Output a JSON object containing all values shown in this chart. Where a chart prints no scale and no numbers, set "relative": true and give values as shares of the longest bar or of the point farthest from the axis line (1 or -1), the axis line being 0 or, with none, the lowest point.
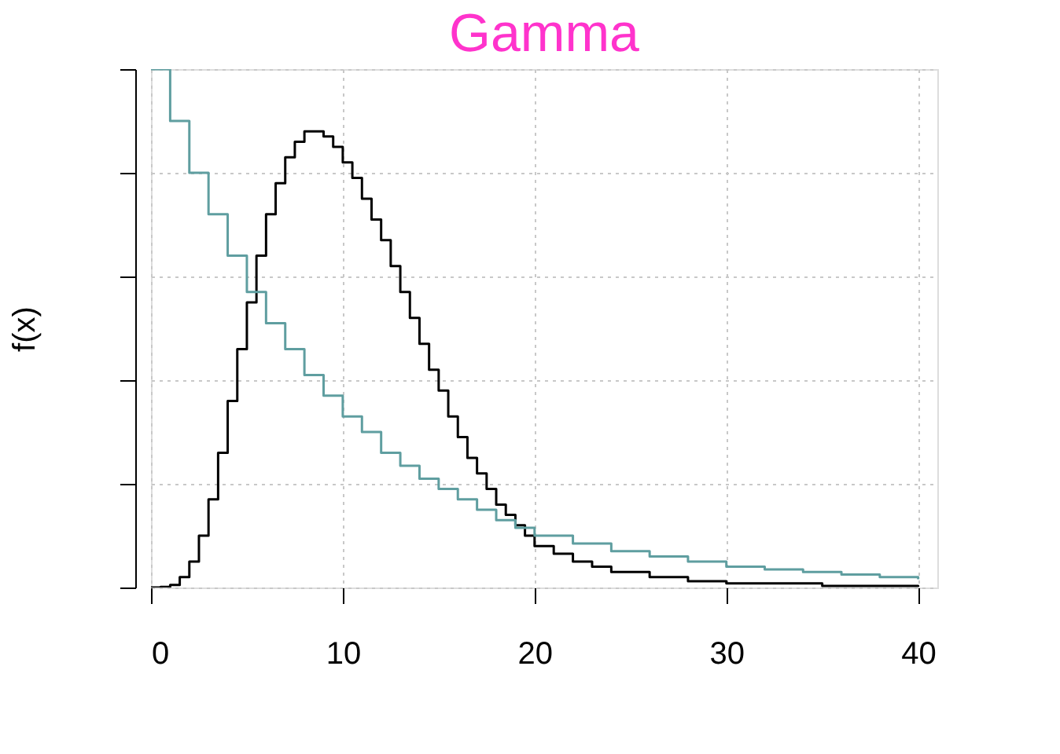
{
  "chart_data": {
    "type": "step",
    "title": "Gamma",
    "ylabel": "f(x)",
    "relative": true,
    "xlim": [
      0,
      41
    ],
    "xticks": [
      0,
      10,
      20,
      30,
      40
    ],
    "grid": true,
    "series": [
      {
        "color": "#000000",
        "x": [
          0,
          0.5,
          1,
          1.5,
          2,
          2.5,
          3,
          3.5,
          4,
          4.5,
          5,
          5.5,
          6,
          6.5,
          7,
          7.5,
          8,
          8.5,
          9,
          9.5,
          10,
          10.5,
          11,
          11.5,
          12,
          12.5,
          13,
          13.5,
          14,
          14.5,
          15,
          15.5,
          16,
          16.5,
          17,
          17.5,
          18,
          18.5,
          19,
          19.5,
          20,
          21,
          22,
          23,
          24,
          26,
          28,
          30,
          35,
          40
        ],
        "values": [
          0,
          0.001,
          0.005,
          0.02,
          0.05,
          0.1,
          0.17,
          0.26,
          0.36,
          0.46,
          0.55,
          0.64,
          0.72,
          0.78,
          0.83,
          0.86,
          0.88,
          0.88,
          0.87,
          0.85,
          0.82,
          0.79,
          0.75,
          0.71,
          0.67,
          0.62,
          0.57,
          0.52,
          0.47,
          0.42,
          0.38,
          0.33,
          0.29,
          0.25,
          0.22,
          0.19,
          0.16,
          0.14,
          0.12,
          0.1,
          0.08,
          0.065,
          0.05,
          0.04,
          0.03,
          0.02,
          0.012,
          0.008,
          0.003,
          0.001
        ]
      },
      {
        "color": "#5f9ea0",
        "x": [
          0,
          1,
          2,
          3,
          4,
          5,
          6,
          7,
          8,
          9,
          10,
          11,
          12,
          13,
          14,
          15,
          16,
          17,
          18,
          19,
          20,
          22,
          24,
          26,
          28,
          30,
          32,
          34,
          36,
          38,
          40
        ],
        "values": [
          1,
          0.9,
          0.8,
          0.72,
          0.64,
          0.57,
          0.51,
          0.46,
          0.41,
          0.37,
          0.33,
          0.3,
          0.26,
          0.235,
          0.21,
          0.19,
          0.17,
          0.15,
          0.13,
          0.115,
          0.1,
          0.085,
          0.07,
          0.06,
          0.05,
          0.04,
          0.035,
          0.03,
          0.025,
          0.02,
          0.016
        ]
      }
    ]
  }
}
